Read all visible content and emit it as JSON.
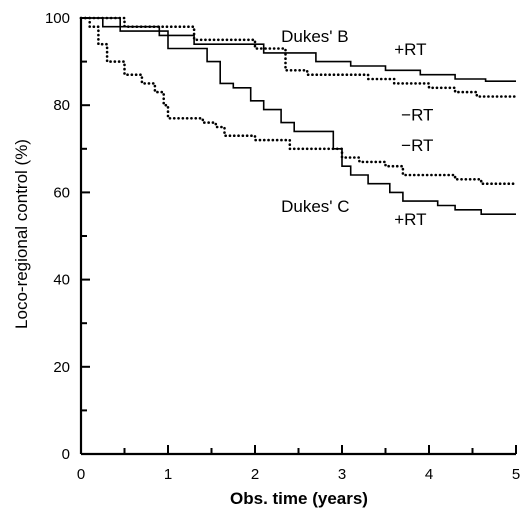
{
  "chart_data": {
    "type": "line",
    "title": "",
    "xlabel": "Obs. time (years)",
    "ylabel": "Loco-regional control (%)",
    "xlim": [
      0,
      5
    ],
    "ylim": [
      0,
      100
    ],
    "x_ticks": [
      0,
      1,
      2,
      3,
      4,
      5
    ],
    "y_ticks": [
      0,
      20,
      40,
      60,
      80,
      100
    ],
    "x_tick_labels": [
      "0",
      "1",
      "2",
      "3",
      "4",
      "5"
    ],
    "y_tick_labels": [
      "0",
      "20",
      "40",
      "60",
      "80",
      "100"
    ],
    "x_minor_step": 0.5,
    "y_minor_step": 10,
    "grid": false,
    "legend": "none",
    "series": [
      {
        "style": "solid",
        "x": [
          0,
          0.45,
          0.45,
          0.9,
          0.9,
          1.3,
          1.3,
          2.1,
          2.1,
          2.7,
          2.7,
          3.1,
          3.1,
          3.5,
          3.5,
          3.9,
          3.9,
          4.3,
          4.3,
          4.65,
          4.65,
          5.0
        ],
        "y": [
          100,
          100,
          98,
          98,
          96,
          96,
          94,
          94,
          92,
          92,
          90,
          90,
          89,
          89,
          88,
          88,
          87,
          87,
          86,
          86,
          85.5,
          85.5
        ]
      },
      {
        "style": "dotted",
        "x": [
          0,
          0.5,
          0.5,
          1.3,
          1.3,
          2.0,
          2.0,
          2.35,
          2.35,
          2.6,
          2.6,
          3.3,
          3.3,
          3.6,
          3.6,
          4.0,
          4.0,
          4.3,
          4.3,
          4.55,
          4.55,
          5.0
        ],
        "y": [
          100,
          100,
          98,
          98,
          95,
          95,
          93,
          93,
          88,
          88,
          87,
          87,
          86,
          86,
          85,
          85,
          84,
          84,
          83,
          83,
          82,
          82
        ]
      },
      {
        "style": "solid",
        "x": [
          0,
          0.25,
          0.25,
          0.45,
          0.45,
          1.0,
          1.0,
          1.45,
          1.45,
          1.6,
          1.6,
          1.75,
          1.75,
          1.95,
          1.95,
          2.1,
          2.1,
          2.3,
          2.3,
          2.45,
          2.45,
          2.9,
          2.9,
          3.0,
          3.0,
          3.1,
          3.1,
          3.3,
          3.3,
          3.55,
          3.55,
          3.7,
          3.7,
          4.1,
          4.1,
          4.3,
          4.3,
          4.6,
          4.6,
          5.0
        ],
        "y": [
          100,
          100,
          98,
          98,
          97,
          97,
          93,
          93,
          90,
          90,
          85,
          85,
          84,
          84,
          81,
          81,
          79,
          79,
          76,
          76,
          74,
          74,
          70,
          70,
          66,
          66,
          64,
          64,
          62,
          62,
          60,
          60,
          58,
          58,
          57,
          57,
          56,
          56,
          55,
          55
        ]
      },
      {
        "style": "dotted",
        "x": [
          0,
          0.1,
          0.1,
          0.2,
          0.2,
          0.3,
          0.3,
          0.5,
          0.5,
          0.7,
          0.7,
          0.85,
          0.85,
          0.95,
          0.95,
          1.0,
          1.0,
          1.4,
          1.4,
          1.55,
          1.55,
          1.65,
          1.65,
          2.0,
          2.0,
          2.4,
          2.4,
          3.0,
          3.0,
          3.2,
          3.2,
          3.5,
          3.5,
          3.7,
          3.7,
          4.3,
          4.3,
          4.6,
          4.6,
          5.0
        ],
        "y": [
          100,
          100,
          98,
          98,
          94,
          94,
          90,
          90,
          87,
          87,
          85,
          85,
          83,
          83,
          80,
          80,
          77,
          77,
          76,
          76,
          75,
          75,
          73,
          73,
          72,
          72,
          70,
          70,
          68,
          68,
          67,
          67,
          66,
          66,
          64,
          64,
          63,
          63,
          62,
          62
        ]
      }
    ],
    "annotations": [
      {
        "text": "Dukes' B",
        "x": 2.3,
        "y": 94.5
      },
      {
        "text": "+RT",
        "x": 3.6,
        "y": 91.5
      },
      {
        "text": "−RT",
        "x": 3.68,
        "y": 76.5
      },
      {
        "text": "−RT",
        "x": 3.68,
        "y": 69.5
      },
      {
        "text": "Dukes' C",
        "x": 2.3,
        "y": 55.5
      },
      {
        "text": "+RT",
        "x": 3.6,
        "y": 52.5
      }
    ]
  }
}
